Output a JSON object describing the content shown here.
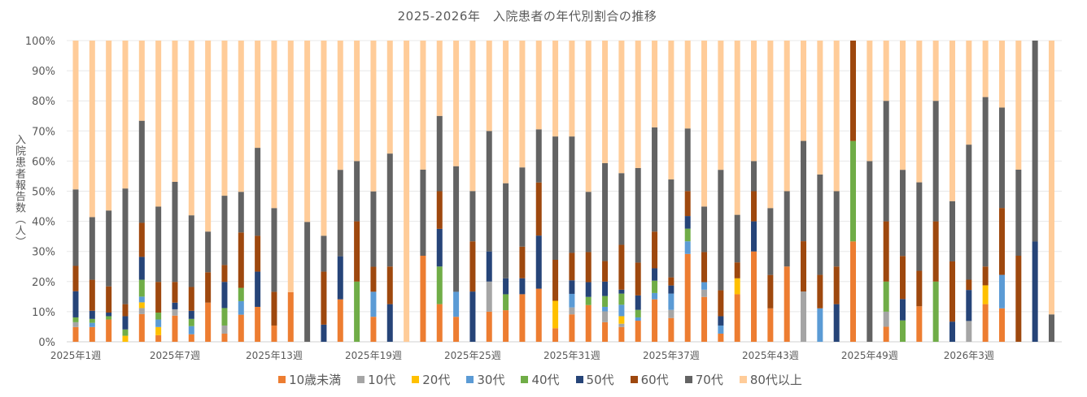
{
  "chart_data": {
    "type": "bar",
    "stacked": "percent",
    "title": "2025-2026年　入院患者の年代別割合の推移",
    "xlabel": "",
    "ylabel": "入院患者報告数（人）",
    "ylim": [
      0,
      100
    ],
    "y_ticks": [
      "0%",
      "10%",
      "20%",
      "30%",
      "40%",
      "50%",
      "60%",
      "70%",
      "80%",
      "90%",
      "100%"
    ],
    "x_tick_labels": [
      "2025年1週",
      "2025年7週",
      "2025年13週",
      "2025年19週",
      "2025年25週",
      "2025年31週",
      "2025年37週",
      "2025年43週",
      "2025年49週",
      "2026年3週"
    ],
    "x_tick_interval": 6,
    "n_weeks": 60,
    "grid": true,
    "legend_position": "bottom",
    "series": [
      {
        "name": "10歳未満",
        "color": "#ED7D31",
        "values": [
          4.9,
          4.9,
          7.4,
          0,
          9.2,
          2.2,
          8.7,
          2.5,
          13.0,
          2.7,
          9.0,
          11.6,
          5.4,
          16.5,
          0,
          0,
          14.1,
          0,
          8.3,
          0,
          0,
          28.6,
          12.5,
          8.3,
          0,
          10,
          10.5,
          15.8,
          17.6,
          4.5,
          9.1,
          12.2,
          6.5,
          4.9,
          7.0,
          14.1,
          7.9,
          29.2,
          14.9,
          2.7,
          15.8,
          30,
          11.1,
          25,
          0,
          0,
          0,
          33.3,
          0,
          5,
          0,
          11.8,
          0,
          0,
          0,
          12.5,
          11.1,
          0,
          0,
          0
        ]
      },
      {
        "name": "10代",
        "color": "#A5A5A5",
        "values": [
          1.6,
          0,
          0,
          0,
          2.0,
          0,
          2.1,
          0,
          0,
          2.7,
          0,
          0,
          0,
          0,
          0,
          0,
          0,
          0,
          0,
          0,
          0,
          0,
          0,
          0,
          0,
          10,
          0,
          0,
          0,
          0,
          2.3,
          0,
          3.6,
          1.1,
          0,
          0,
          2.7,
          0,
          2.4,
          0,
          0,
          0,
          0,
          0,
          16.7,
          0,
          0,
          0,
          0,
          5,
          0,
          0,
          0,
          0,
          6.9,
          0,
          0,
          0,
          0,
          0
        ]
      },
      {
        "name": "20代",
        "color": "#FFC000",
        "values": [
          0,
          0,
          0,
          2.0,
          1.9,
          2.7,
          0,
          0,
          0,
          0,
          0,
          0,
          0,
          0,
          0,
          0,
          0,
          0,
          0,
          0,
          0,
          0,
          0,
          0,
          0,
          0,
          0,
          0,
          0,
          9.1,
          0,
          0,
          0,
          2.5,
          0,
          0,
          0,
          0,
          0,
          0,
          5.3,
          0,
          0,
          0,
          0,
          0,
          0,
          0,
          0,
          0,
          0,
          0,
          0,
          0,
          0,
          6.25,
          0,
          0,
          0,
          0
        ]
      },
      {
        "name": "30代",
        "color": "#5B9BD5",
        "values": [
          0,
          1.4,
          0,
          0,
          1.9,
          2.5,
          0,
          2.7,
          0,
          0,
          4.5,
          0,
          0,
          0,
          0,
          0,
          0,
          0,
          8.3,
          0,
          0,
          0,
          0,
          8.3,
          0,
          0,
          0,
          0,
          0,
          0,
          4.5,
          0,
          1.5,
          3.8,
          1.1,
          2.1,
          5.4,
          4.2,
          2.5,
          2.7,
          0,
          0,
          0,
          0,
          0,
          11.1,
          0,
          0,
          0,
          0,
          0,
          0,
          0,
          0,
          0,
          0,
          11.1,
          0,
          0,
          0
        ]
      },
      {
        "name": "40代",
        "color": "#70AD47",
        "values": [
          1.6,
          1.3,
          1.1,
          2.1,
          5.6,
          2.3,
          0,
          2.4,
          0,
          5.8,
          4.4,
          0,
          0,
          0,
          0,
          0,
          0,
          20,
          0,
          0,
          0,
          0,
          12.5,
          0,
          0,
          0,
          5.3,
          0,
          0,
          0,
          0,
          2.7,
          3.6,
          3.7,
          2.5,
          4.1,
          0,
          4.2,
          0,
          0,
          0,
          0,
          0,
          0,
          0,
          0,
          0,
          33.3,
          0,
          10,
          7.1,
          0,
          20,
          0,
          0,
          0,
          0,
          0,
          0,
          0
        ]
      },
      {
        "name": "50代",
        "color": "#264478",
        "values": [
          8.7,
          2.7,
          1.2,
          4.4,
          7.6,
          0,
          2.2,
          2.7,
          0,
          8.7,
          0,
          11.7,
          0,
          0,
          0,
          5.7,
          14.3,
          0,
          0,
          12.5,
          0,
          0,
          12.5,
          0,
          16.7,
          10,
          5.3,
          5.3,
          17.6,
          0,
          4.5,
          4.9,
          4.8,
          1.3,
          4.8,
          4.1,
          2.7,
          4.2,
          0,
          3.1,
          0,
          10,
          0,
          0,
          0,
          0,
          12.5,
          0,
          0,
          0,
          7.1,
          0,
          0,
          6.7,
          10.3,
          0,
          0,
          0,
          33.3,
          0
        ]
      },
      {
        "name": "60代",
        "color": "#9E480E",
        "values": [
          8.4,
          10.3,
          8.7,
          4.0,
          11.3,
          10.2,
          6.9,
          7.9,
          10.1,
          5.6,
          18.4,
          11.9,
          11.2,
          0,
          0,
          17.6,
          0,
          20,
          8.3,
          12.5,
          0,
          0,
          12.5,
          0,
          16.7,
          0,
          0,
          10.5,
          17.6,
          13.6,
          9.1,
          10,
          6.8,
          14.9,
          10.9,
          12.2,
          2.7,
          8.3,
          10,
          8.6,
          5.3,
          10,
          11.1,
          0,
          16.7,
          11.1,
          12.5,
          33.3,
          0,
          20,
          14.3,
          11.8,
          20,
          20,
          3.4,
          6.25,
          22.2,
          28.6,
          0,
          0
        ]
      },
      {
        "name": "70代",
        "color": "#636363",
        "values": [
          25.4,
          20.8,
          25.2,
          38.4,
          33.9,
          25.0,
          33.2,
          23.8,
          13.5,
          23.0,
          13.5,
          29.2,
          27.8,
          0,
          39.8,
          11.9,
          28.7,
          20,
          25,
          37.5,
          0,
          28.6,
          25,
          41.7,
          16.7,
          40,
          31.6,
          26.3,
          17.6,
          40.9,
          38.6,
          20,
          32.5,
          23.8,
          31.4,
          34.6,
          32.5,
          20.8,
          15.1,
          40,
          15.8,
          10,
          22.2,
          25,
          33.3,
          33.3,
          25,
          0,
          60,
          40,
          28.6,
          29.4,
          40,
          20,
          44.8,
          56.25,
          33.3,
          28.6,
          66.7,
          9.1
        ]
      },
      {
        "name": "80代以上",
        "color": "#FFCC99",
        "values": [
          49.4,
          58.6,
          56.4,
          49.1,
          26.6,
          55.1,
          46.9,
          58.0,
          63.4,
          51.5,
          50.2,
          35.6,
          55.6,
          83.5,
          60.2,
          64.8,
          42.9,
          40,
          50,
          37.5,
          100,
          42.9,
          25,
          41.7,
          50,
          30,
          47.4,
          42.1,
          29.4,
          31.8,
          31.8,
          50.2,
          40.7,
          44,
          42.3,
          28.8,
          46.1,
          29.2,
          55.1,
          42.9,
          57.9,
          40,
          55.6,
          50,
          33.3,
          44.4,
          50,
          0,
          40,
          20,
          42.9,
          47.1,
          20,
          53.3,
          34.5,
          18.75,
          22.2,
          42.9,
          0,
          90.9
        ]
      }
    ]
  }
}
